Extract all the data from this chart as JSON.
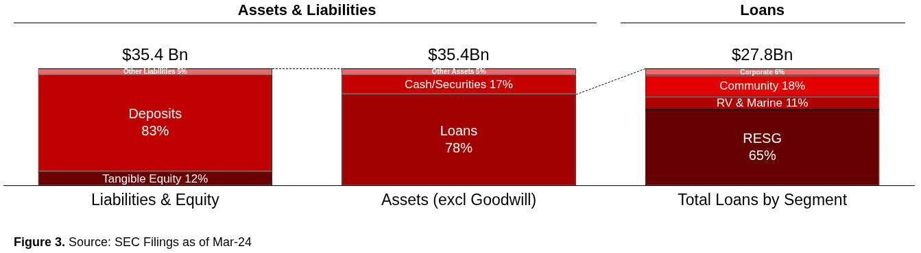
{
  "chart_data": {
    "type": "bar",
    "stacked": true,
    "categories": [
      "Liabilities & Equity",
      "Assets (excl Goodwill)",
      "Total Loans by Segment"
    ],
    "ylim": [
      0,
      100
    ],
    "tick_labels": "x",
    "grid": false,
    "legend": false,
    "series": [
      {
        "name": "Tangible Equity",
        "color": "#6b0000",
        "values": [
          12,
          null,
          null
        ],
        "value_labels": [
          "12%",
          null,
          null
        ]
      },
      {
        "name": "Deposits",
        "color": "#c00000",
        "values": [
          83,
          null,
          null
        ],
        "value_labels": [
          "83%",
          null,
          null
        ]
      },
      {
        "name": "Other Liabilities",
        "color": "#f26868",
        "values": [
          5,
          null,
          null
        ],
        "value_labels": [
          "5%",
          null,
          null
        ]
      },
      {
        "name": "Loans",
        "color": "#a00000",
        "values": [
          null,
          78,
          null
        ],
        "value_labels": [
          null,
          "78%",
          null
        ]
      },
      {
        "name": "Cash/Securities",
        "color": "#c40000",
        "values": [
          null,
          17,
          null
        ],
        "value_labels": [
          null,
          "17%",
          null
        ]
      },
      {
        "name": "Other Assets",
        "color": "#f26868",
        "values": [
          null,
          5,
          null
        ],
        "value_labels": [
          null,
          "5%",
          null
        ]
      },
      {
        "name": "RESG",
        "color": "#660000",
        "values": [
          null,
          null,
          65
        ],
        "value_labels": [
          null,
          null,
          "65%"
        ]
      },
      {
        "name": "RV & Marine",
        "color": "#b00000",
        "values": [
          null,
          null,
          11
        ],
        "value_labels": [
          null,
          null,
          "11%"
        ]
      },
      {
        "name": "Community",
        "color": "#e40000",
        "values": [
          null,
          null,
          18
        ],
        "value_labels": [
          null,
          null,
          "18%"
        ]
      },
      {
        "name": "Corporate",
        "color": "#f26868",
        "values": [
          null,
          null,
          6
        ],
        "value_labels": [
          null,
          null,
          "6%"
        ]
      }
    ],
    "annotations": [
      "Assets & Liabilities",
      "Loans",
      "Figure 3.",
      "Source: SEC Filings as of Mar-24",
      {
        "text": "$35.4 Bn",
        "x": "Liabilities & Equity",
        "y": 100
      },
      {
        "text": "$35.4Bn",
        "x": "Assets (excl Goodwill)",
        "y": 100
      },
      {
        "text": "$27.8Bn",
        "x": "Total Loans by Segment",
        "y": 100
      }
    ]
  }
}
